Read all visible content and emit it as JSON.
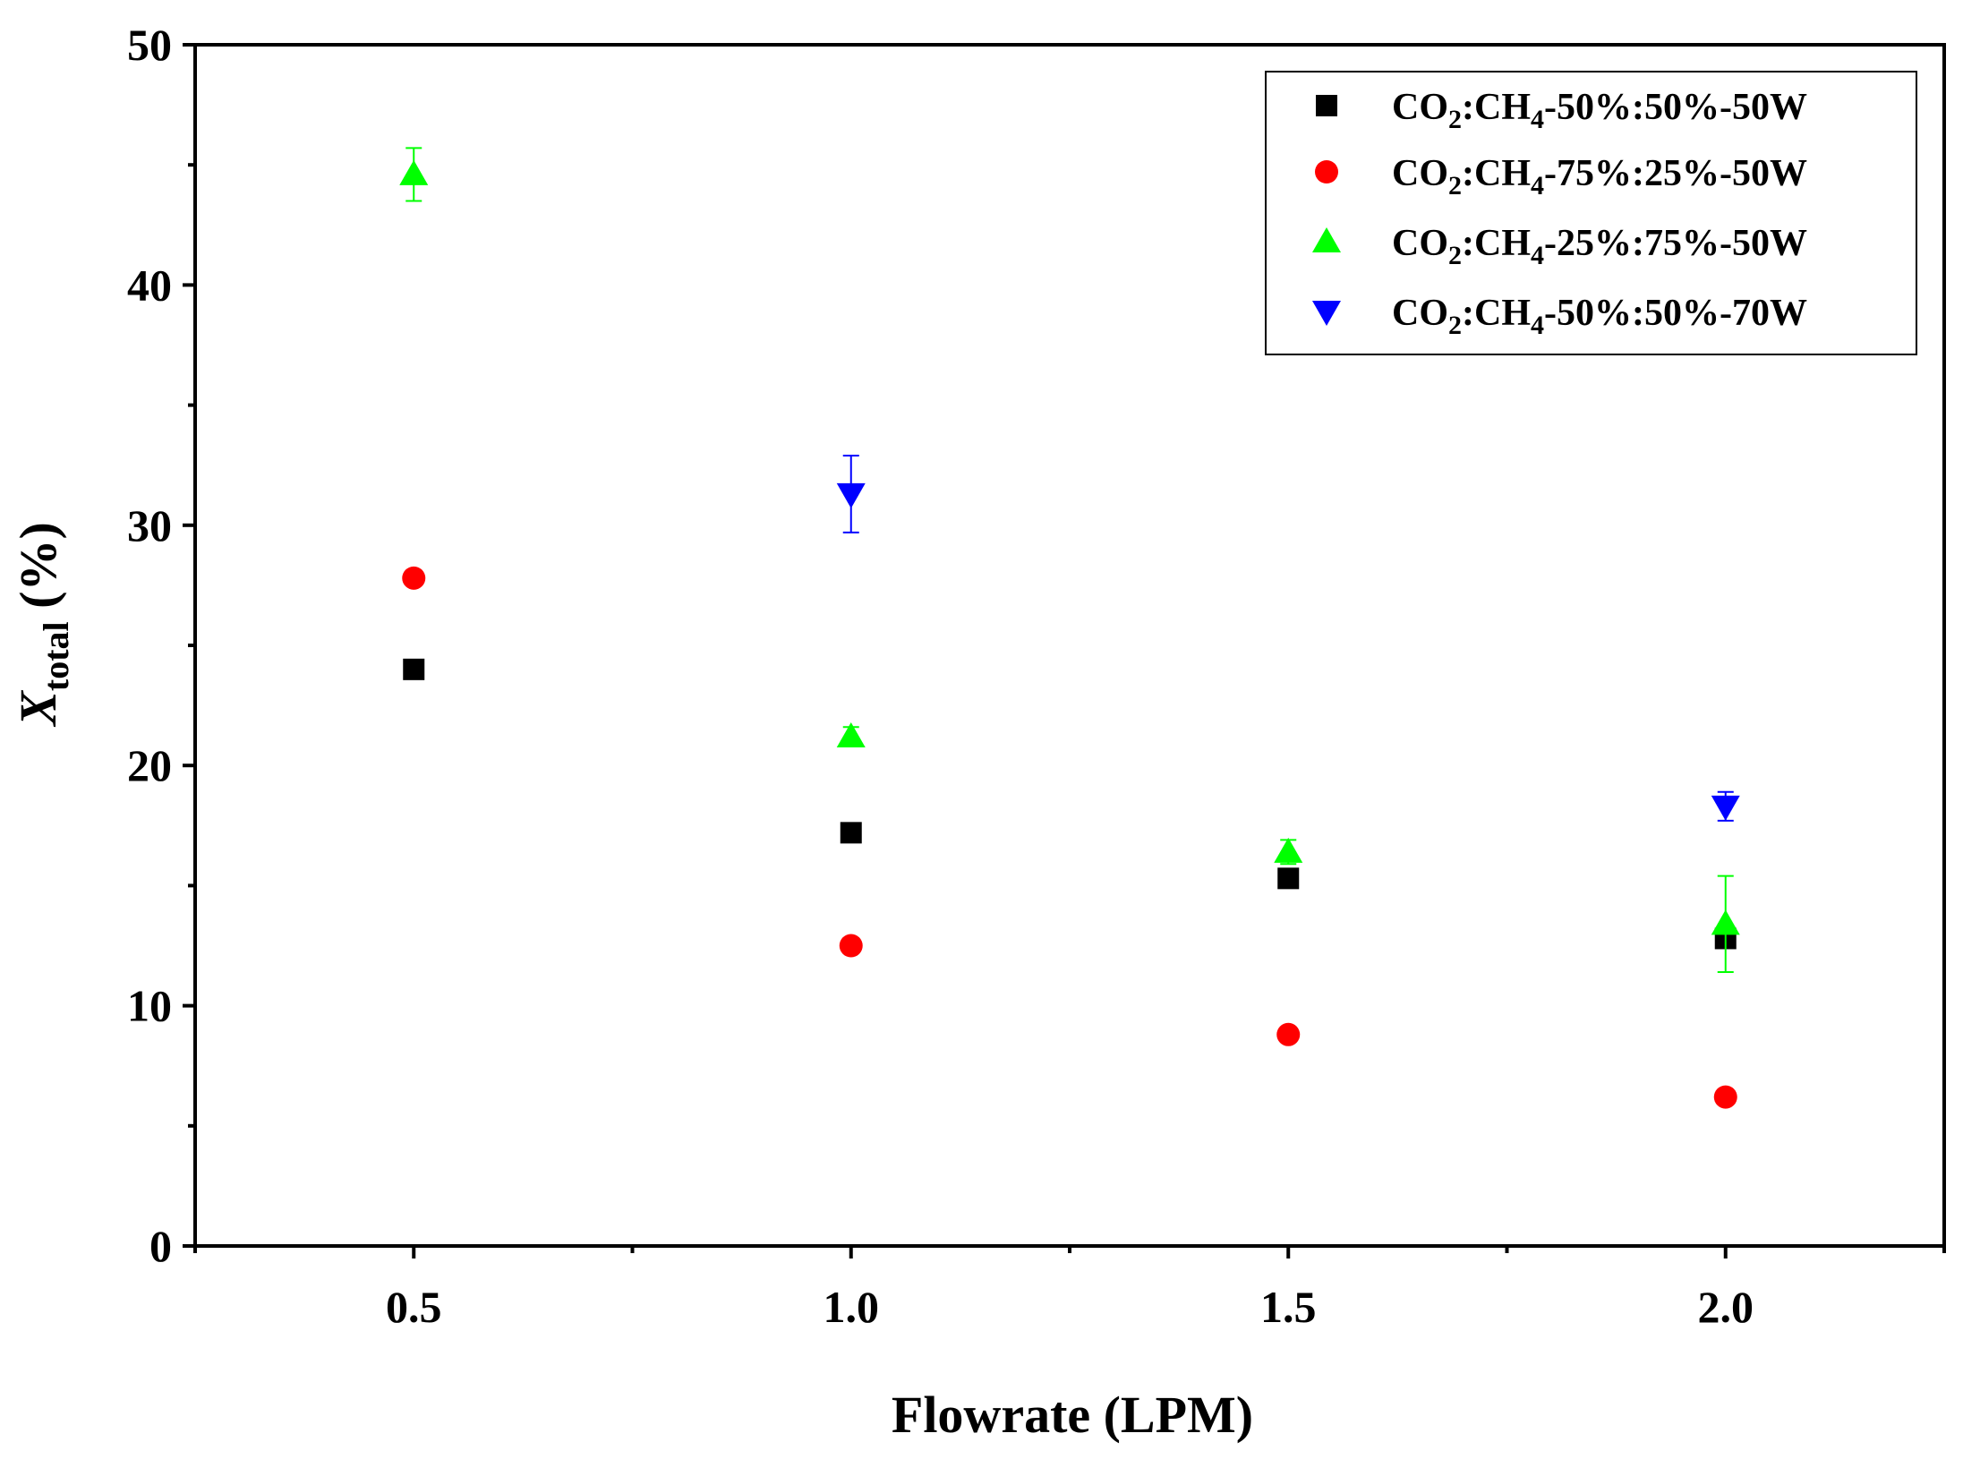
{
  "chart_data": {
    "type": "scatter",
    "title": "",
    "xlabel": "Flowrate (LPM)",
    "ylabel": {
      "main": "X",
      "sub": "total",
      "unit": " (%)"
    },
    "xlim": [
      0.25,
      2.25
    ],
    "ylim": [
      0,
      50
    ],
    "xticks": [
      0.5,
      1.0,
      1.5,
      2.0
    ],
    "xtick_labels": [
      "0.5",
      "1.0",
      "1.5",
      "2.0"
    ],
    "yticks": [
      0,
      10,
      20,
      30,
      40,
      50
    ],
    "ytick_labels": [
      "0",
      "10",
      "20",
      "30",
      "40",
      "50"
    ],
    "grid": false,
    "legend_position": "top-right",
    "series": [
      {
        "name": "CO2:CH4-50%:50%-50W",
        "label_parts": {
          "a": "CO",
          "b": "2",
          "c": ":CH",
          "d": "4",
          "e": "-50%:50%-50W"
        },
        "marker": "square",
        "color": "#000000",
        "x": [
          0.5,
          1.0,
          1.5,
          2.0
        ],
        "y": [
          24.0,
          17.2,
          15.3,
          12.8
        ],
        "err": [
          0.3,
          0.3,
          0.3,
          0.3
        ]
      },
      {
        "name": "CO2:CH4-75%:25%-50W",
        "label_parts": {
          "a": "CO",
          "b": "2",
          "c": ":CH",
          "d": "4",
          "e": "-75%:25%-50W"
        },
        "marker": "circle",
        "color": "#ff0000",
        "x": [
          0.5,
          1.0,
          1.5,
          2.0
        ],
        "y": [
          27.8,
          12.5,
          8.8,
          6.2
        ],
        "err": [
          0.3,
          0.3,
          0.3,
          0.3
        ]
      },
      {
        "name": "CO2:CH4-25%:75%-50W",
        "label_parts": {
          "a": "CO",
          "b": "2",
          "c": ":CH",
          "d": "4",
          "e": "-25%:75%-50W"
        },
        "marker": "triangle-up",
        "color": "#00ff00",
        "x": [
          0.5,
          1.0,
          1.5,
          2.0
        ],
        "y": [
          44.6,
          21.2,
          16.4,
          13.4
        ],
        "err": [
          1.1,
          0.4,
          0.5,
          2.0
        ]
      },
      {
        "name": "CO2:CH4-50%:50%-70W",
        "label_parts": {
          "a": "CO",
          "b": "2",
          "c": ":CH",
          "d": "4",
          "e": "-50%:50%-70W"
        },
        "marker": "triangle-down",
        "color": "#0000ff",
        "x": [
          1.0,
          2.0
        ],
        "y": [
          31.3,
          18.3
        ],
        "err": [
          1.6,
          0.6
        ]
      }
    ]
  }
}
